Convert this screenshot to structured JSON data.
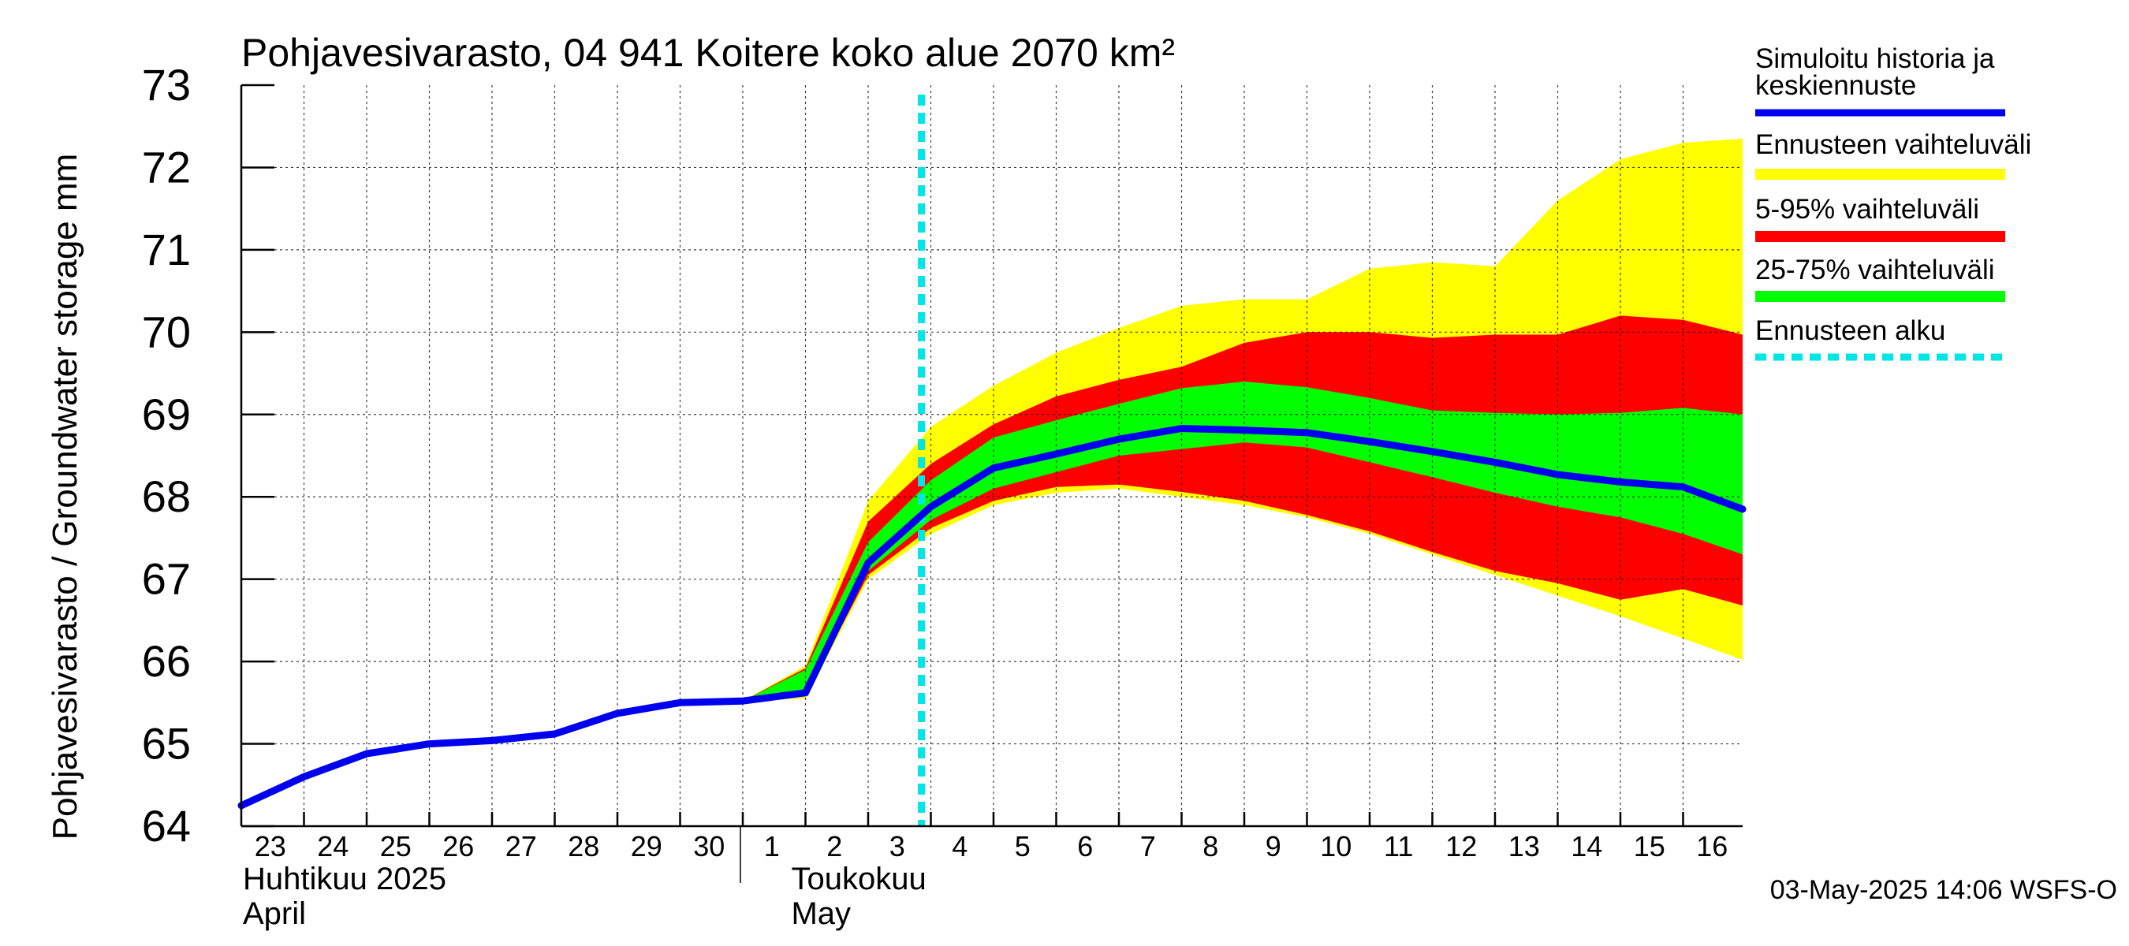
{
  "chart_data": {
    "type": "area",
    "title": "Pohjavesivarasto, 04 941 Koitere koko alue 2070 km²",
    "ylabel": "Pohjavesivarasto / Groundwater storage   mm",
    "ylim": [
      64,
      73
    ],
    "y_ticks": [
      "64",
      "65",
      "66",
      "67",
      "68",
      "69",
      "70",
      "71",
      "72",
      "73"
    ],
    "x_tick_labels": [
      "23",
      "24",
      "25",
      "26",
      "27",
      "28",
      "29",
      "30",
      "1",
      "2",
      "3",
      "4",
      "5",
      "6",
      "7",
      "8",
      "9",
      "10",
      "11",
      "12",
      "13",
      "14",
      "15",
      "16"
    ],
    "month_labels": [
      {
        "fi": "Huhtikuu  2025",
        "en": "April"
      },
      {
        "fi": "Toukokuu",
        "en": "May"
      }
    ],
    "timestamp": "03-May-2025 14:06 WSFS-O",
    "forecast_start_day": 10.85,
    "grid": true,
    "legend": {
      "position": "right",
      "entries": [
        {
          "label": "Simuloitu historia ja keskiennuste",
          "line1": "Simuloitu historia ja",
          "line2": "keskiennuste",
          "color": "#0000ee",
          "style": "solid"
        },
        {
          "label": "Ennusteen vaihteluväli",
          "color": "#ffff00",
          "style": "band"
        },
        {
          "label": "5-95% vaihteluväli",
          "color": "#ff0000",
          "style": "band"
        },
        {
          "label": "25-75% vaihteluväli",
          "color": "#00ff00",
          "style": "band"
        },
        {
          "label": "Ennusteen alku",
          "color": "#00e5e5",
          "style": "dashed"
        }
      ]
    },
    "series": [
      {
        "name": "Simuloitu historia ja keskiennuste",
        "color": "#0000ee",
        "x": [
          0,
          1,
          2,
          3,
          4,
          5,
          6,
          7,
          8,
          9,
          10,
          11,
          12,
          13,
          14,
          15,
          16,
          17,
          18,
          19,
          20,
          21,
          22,
          23,
          23.95
        ],
        "values": [
          64.25,
          64.6,
          64.88,
          65.0,
          65.04,
          65.12,
          65.37,
          65.5,
          65.52,
          65.62,
          67.2,
          67.88,
          68.35,
          68.52,
          68.7,
          68.83,
          68.81,
          68.78,
          68.67,
          68.55,
          68.42,
          68.27,
          68.18,
          68.12,
          67.85
        ]
      },
      {
        "name": "Ennusteen vaihteluväli",
        "color": "#ffff00",
        "x": [
          8,
          9,
          10,
          11,
          12,
          13,
          14,
          15,
          16,
          17,
          18,
          19,
          20,
          21,
          22,
          23,
          23.95
        ],
        "upper": [
          65.52,
          65.95,
          67.95,
          68.85,
          69.35,
          69.75,
          70.05,
          70.32,
          70.4,
          70.4,
          70.77,
          70.85,
          70.8,
          71.6,
          72.1,
          72.3,
          72.35
        ],
        "lower": [
          65.52,
          65.55,
          67.0,
          67.55,
          67.9,
          68.05,
          68.1,
          68.0,
          67.9,
          67.75,
          67.55,
          67.3,
          67.05,
          66.8,
          66.55,
          66.28,
          66.02
        ]
      },
      {
        "name": "5-95% vaihteluväli",
        "color": "#ff0000",
        "x": [
          8,
          9,
          10,
          11,
          12,
          13,
          14,
          15,
          16,
          17,
          18,
          19,
          20,
          21,
          22,
          23,
          23.95
        ],
        "upper": [
          65.52,
          65.92,
          67.7,
          68.4,
          68.88,
          69.22,
          69.42,
          69.58,
          69.87,
          70.0,
          70.0,
          69.93,
          69.97,
          69.97,
          70.2,
          70.15,
          69.97
        ],
        "lower": [
          65.52,
          65.58,
          67.05,
          67.62,
          67.95,
          68.12,
          68.15,
          68.06,
          67.95,
          67.78,
          67.58,
          67.33,
          67.1,
          66.95,
          66.75,
          66.88,
          66.68
        ]
      },
      {
        "name": "25-75% vaihteluväli",
        "color": "#00ff00",
        "x": [
          8,
          9,
          10,
          11,
          12,
          13,
          14,
          15,
          16,
          17,
          18,
          19,
          20,
          21,
          22,
          23,
          23.95
        ],
        "upper": [
          65.52,
          65.9,
          67.45,
          68.2,
          68.72,
          68.93,
          69.13,
          69.32,
          69.4,
          69.33,
          69.2,
          69.05,
          69.02,
          69.0,
          69.02,
          69.08,
          69.0
        ],
        "lower": [
          65.52,
          65.6,
          67.1,
          67.72,
          68.1,
          68.3,
          68.5,
          68.58,
          68.66,
          68.6,
          68.42,
          68.24,
          68.05,
          67.88,
          67.75,
          67.55,
          67.3
        ]
      }
    ]
  }
}
